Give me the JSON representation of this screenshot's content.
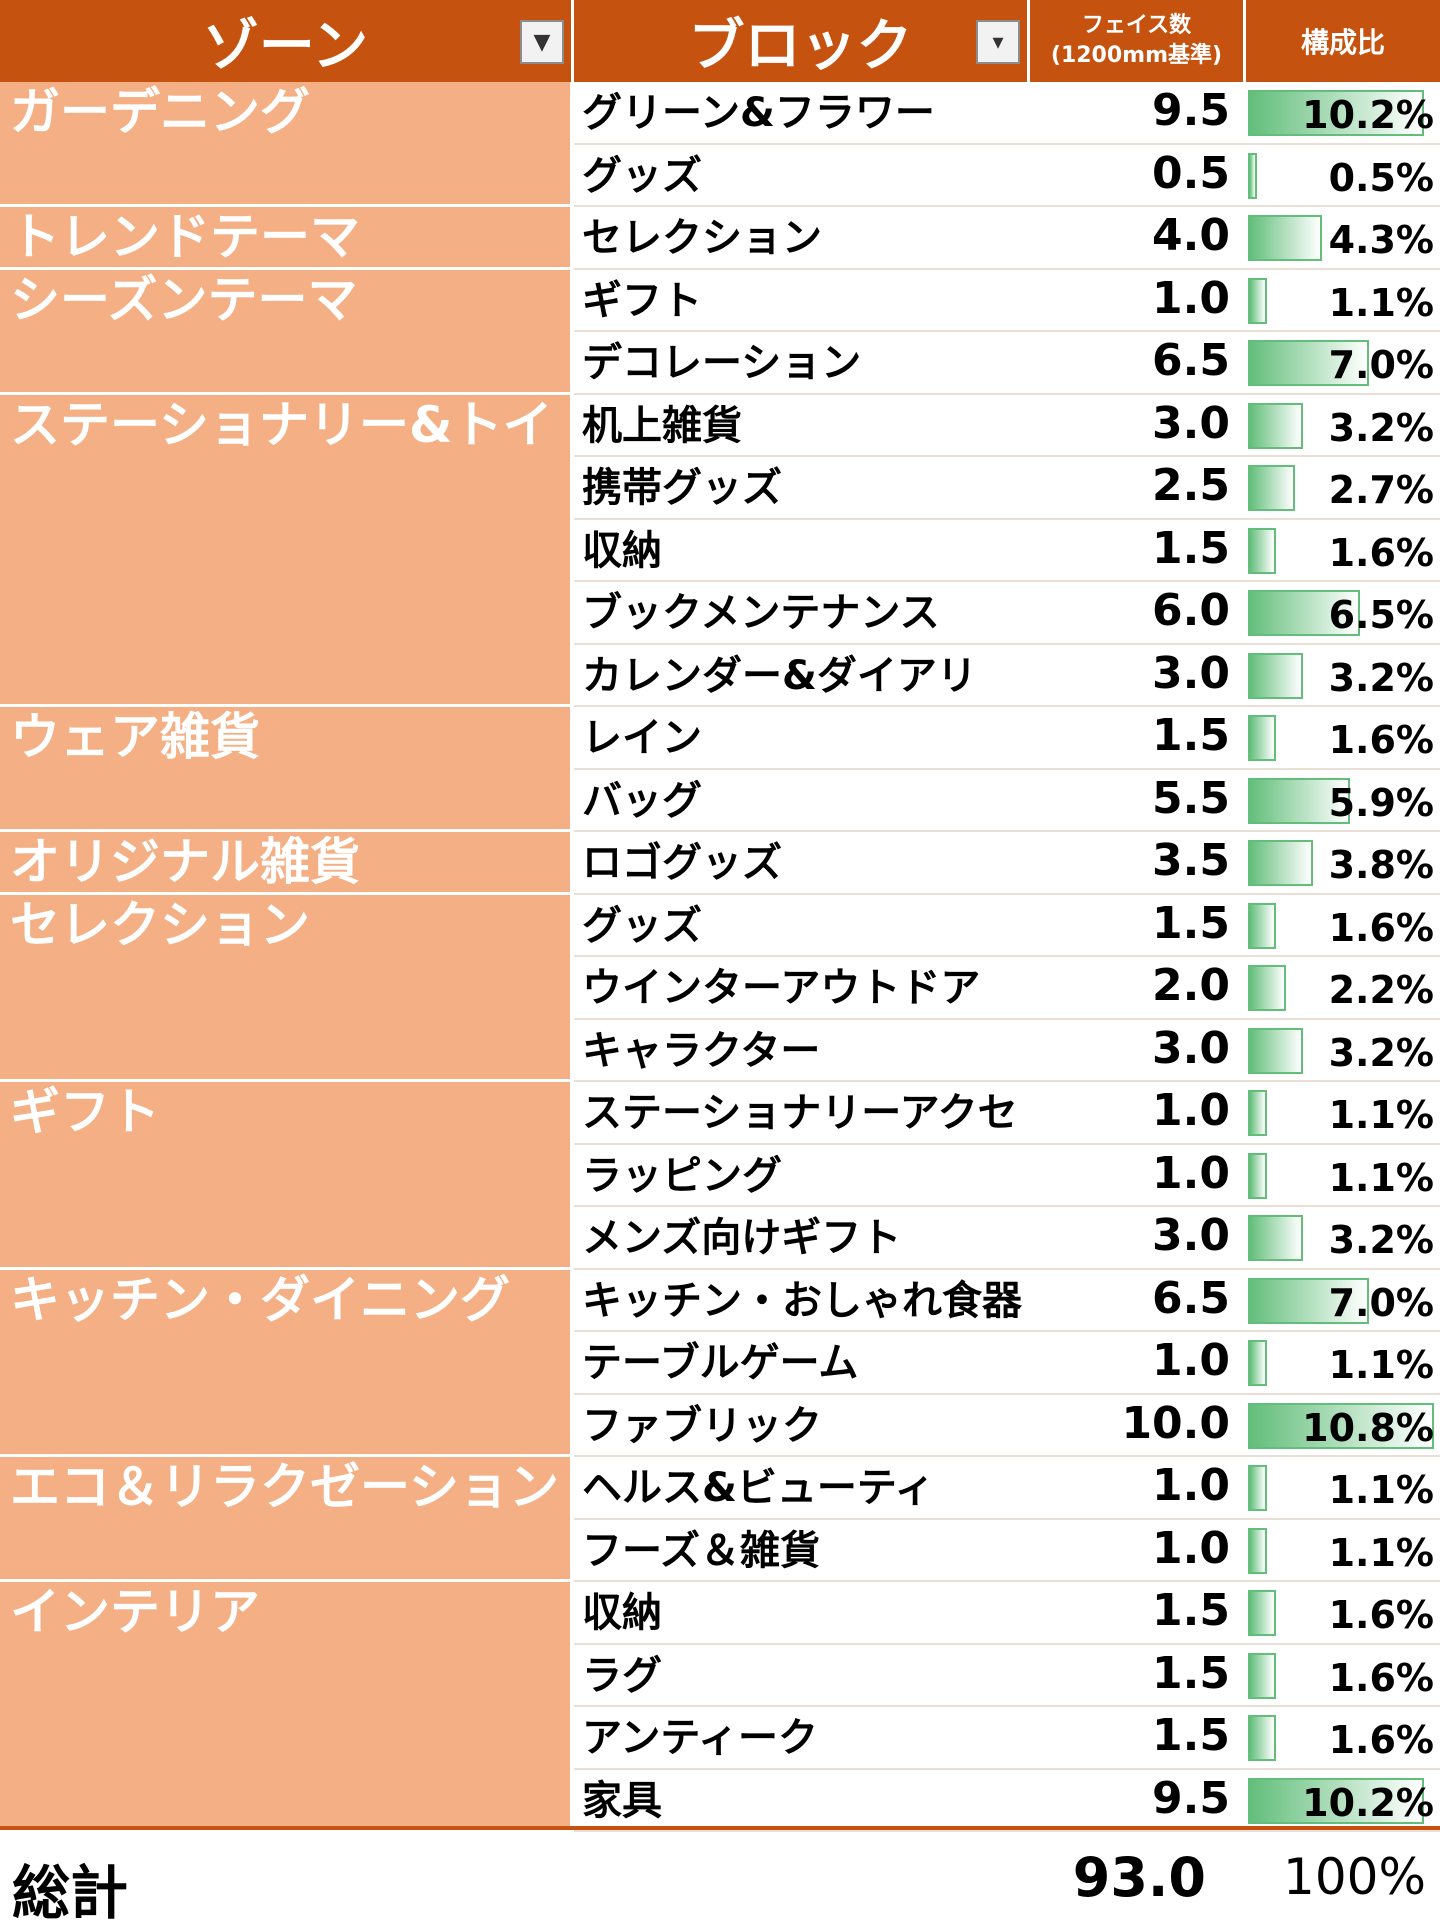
{
  "headers": {
    "zone": "ゾーン",
    "block": "ブロック",
    "face_line1": "フェイス数",
    "face_line2": "(1200mm基準)",
    "ratio": "構成比"
  },
  "zones": [
    {
      "name": "ガーデニング",
      "blocks": [
        {
          "name": "グリーン&フラワー",
          "face": "9.5",
          "ratio_label": "10.2%",
          "ratio": 10.2
        },
        {
          "name": "グッズ",
          "face": "0.5",
          "ratio_label": "0.5%",
          "ratio": 0.5
        }
      ]
    },
    {
      "name": "トレンドテーマ",
      "blocks": [
        {
          "name": "セレクション",
          "face": "4.0",
          "ratio_label": "4.3%",
          "ratio": 4.3
        }
      ]
    },
    {
      "name": "シーズンテーマ",
      "blocks": [
        {
          "name": "ギフト",
          "face": "1.0",
          "ratio_label": "1.1%",
          "ratio": 1.1
        },
        {
          "name": "デコレーション",
          "face": "6.5",
          "ratio_label": "7.0%",
          "ratio": 7.0
        }
      ]
    },
    {
      "name": "ステーショナリー&トイ",
      "blocks": [
        {
          "name": "机上雑貨",
          "face": "3.0",
          "ratio_label": "3.2%",
          "ratio": 3.2
        },
        {
          "name": "携帯グッズ",
          "face": "2.5",
          "ratio_label": "2.7%",
          "ratio": 2.7
        },
        {
          "name": "収納",
          "face": "1.5",
          "ratio_label": "1.6%",
          "ratio": 1.6
        },
        {
          "name": "ブックメンテナンス",
          "face": "6.0",
          "ratio_label": "6.5%",
          "ratio": 6.5
        },
        {
          "name": "カレンダー&ダイアリ",
          "face": "3.0",
          "ratio_label": "3.2%",
          "ratio": 3.2
        }
      ]
    },
    {
      "name": "ウェア雑貨",
      "blocks": [
        {
          "name": "レイン",
          "face": "1.5",
          "ratio_label": "1.6%",
          "ratio": 1.6
        },
        {
          "name": "バッグ",
          "face": "5.5",
          "ratio_label": "5.9%",
          "ratio": 5.9
        }
      ]
    },
    {
      "name": "オリジナル雑貨",
      "blocks": [
        {
          "name": "ロゴグッズ",
          "face": "3.5",
          "ratio_label": "3.8%",
          "ratio": 3.8
        }
      ]
    },
    {
      "name": "セレクション",
      "blocks": [
        {
          "name": "グッズ",
          "face": "1.5",
          "ratio_label": "1.6%",
          "ratio": 1.6
        },
        {
          "name": "ウインターアウトドア",
          "face": "2.0",
          "ratio_label": "2.2%",
          "ratio": 2.2
        },
        {
          "name": "キャラクター",
          "face": "3.0",
          "ratio_label": "3.2%",
          "ratio": 3.2
        }
      ]
    },
    {
      "name": "ギフト",
      "blocks": [
        {
          "name": "ステーショナリーアクセ",
          "face": "1.0",
          "ratio_label": "1.1%",
          "ratio": 1.1
        },
        {
          "name": "ラッピング",
          "face": "1.0",
          "ratio_label": "1.1%",
          "ratio": 1.1
        },
        {
          "name": "メンズ向けギフト",
          "face": "3.0",
          "ratio_label": "3.2%",
          "ratio": 3.2
        }
      ]
    },
    {
      "name": "キッチン・ダイニング",
      "blocks": [
        {
          "name": "キッチン・おしゃれ食器",
          "face": "6.5",
          "ratio_label": "7.0%",
          "ratio": 7.0
        },
        {
          "name": "テーブルゲーム",
          "face": "1.0",
          "ratio_label": "1.1%",
          "ratio": 1.1
        },
        {
          "name": "ファブリック",
          "face": "10.0",
          "ratio_label": "10.8%",
          "ratio": 10.8
        }
      ]
    },
    {
      "name": "エコ＆リラクゼーション",
      "blocks": [
        {
          "name": "ヘルス&ビューティ",
          "face": "1.0",
          "ratio_label": "1.1%",
          "ratio": 1.1
        },
        {
          "name": "フーズ＆雑貨",
          "face": "1.0",
          "ratio_label": "1.1%",
          "ratio": 1.1
        }
      ]
    },
    {
      "name": "インテリア",
      "blocks": [
        {
          "name": "収納",
          "face": "1.5",
          "ratio_label": "1.6%",
          "ratio": 1.6
        },
        {
          "name": "ラグ",
          "face": "1.5",
          "ratio_label": "1.6%",
          "ratio": 1.6
        },
        {
          "name": "アンティーク",
          "face": "1.5",
          "ratio_label": "1.6%",
          "ratio": 1.6
        },
        {
          "name": "家具",
          "face": "9.5",
          "ratio_label": "10.2%",
          "ratio": 10.2
        }
      ]
    }
  ],
  "total": {
    "label": "総計",
    "face": "93.0",
    "ratio": "100%"
  },
  "colors": {
    "header": "#c5530f",
    "zone_fill": "#f4b084",
    "bar": "#63be7b"
  }
}
